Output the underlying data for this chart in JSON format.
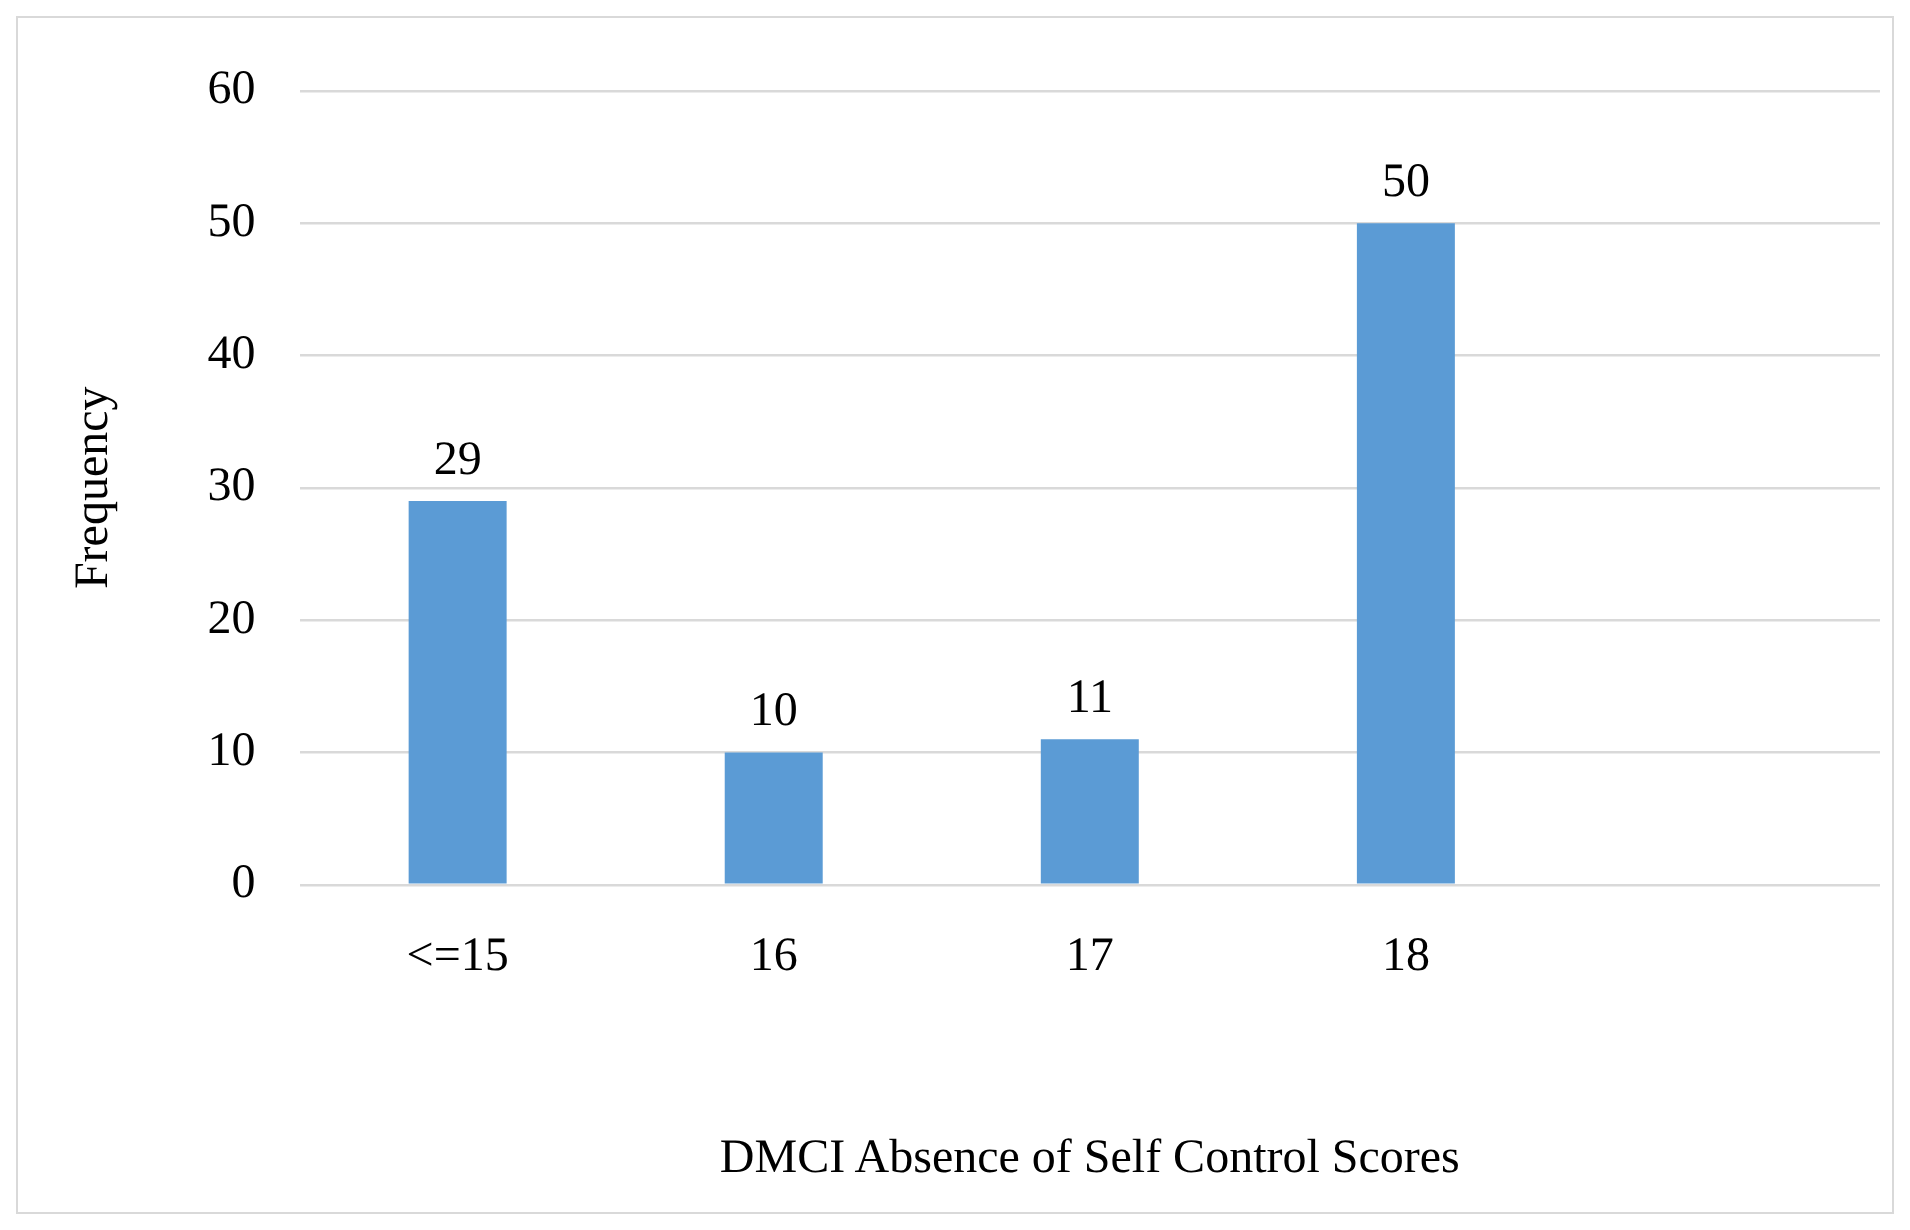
{
  "chart_data": {
    "type": "bar",
    "xlabel": "DMCI Absence of Self Control Scores",
    "ylabel": "Frequency",
    "categories": [
      "<=15",
      "16",
      "17",
      "18",
      null
    ],
    "values": [
      29,
      10,
      11,
      50,
      null
    ],
    "color": "#5b9bd5",
    "ylim": [
      0,
      60
    ],
    "yticks": [
      0,
      10,
      20,
      30,
      40,
      50,
      60
    ],
    "grid": "y",
    "legend": false,
    "data_labels": true
  }
}
